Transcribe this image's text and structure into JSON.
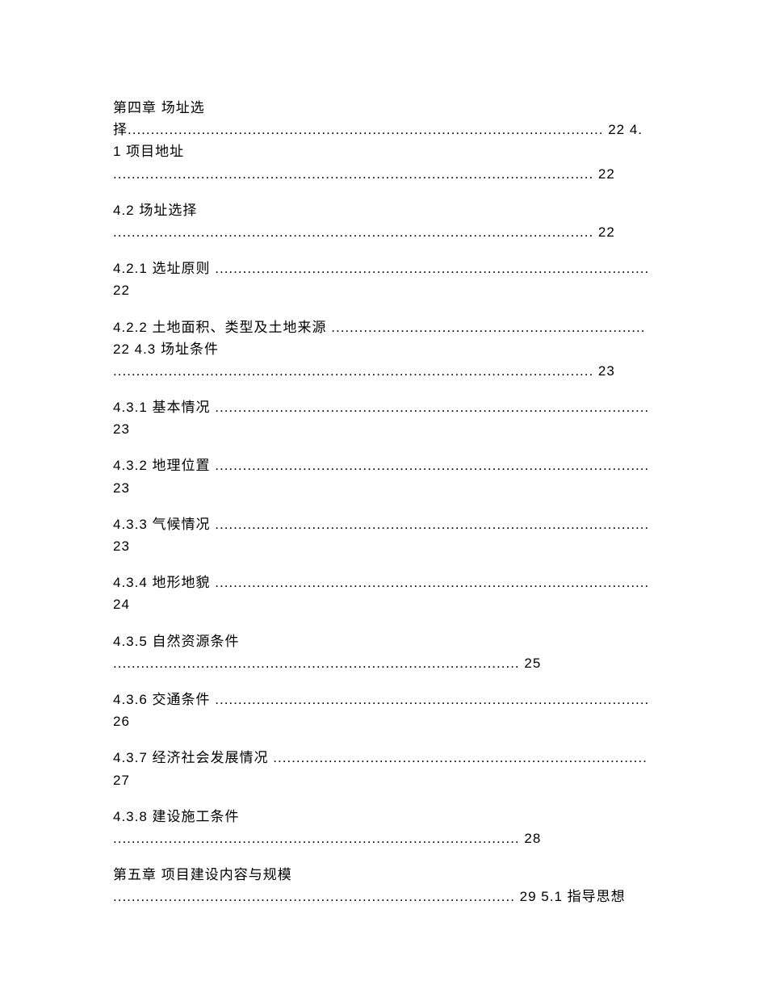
{
  "toc": {
    "font_size": 17,
    "text_color": "#000000",
    "background_color": "#ffffff",
    "entries": [
      {
        "text": "第四章 场址选择....................................................................................................... 22 4.1 项目地址 ........................................................................................................ 22"
      },
      {
        "text": "4.2 场址选择 ........................................................................................................ 22"
      },
      {
        "text": "4.2.1 选址原则 .............................................................................................. 22"
      },
      {
        "text": "4.2.2 土地面积、类型及土地来源 .................................................................... 22 4.3 场址条件 ........................................................................................................ 23"
      },
      {
        "text": "4.3.1 基本情况 .............................................................................................. 23"
      },
      {
        "text": "4.3.2 地理位置 .............................................................................................. 23"
      },
      {
        "text": "4.3.3 气候情况 .............................................................................................. 23"
      },
      {
        "text": "4.3.4 地形地貌 .............................................................................................. 24"
      },
      {
        "text": "4.3.5 自然资源条件 ........................................................................................ 25"
      },
      {
        "text": "4.3.6 交通条件 .............................................................................................. 26"
      },
      {
        "text": "4.3.7 经济社会发展情况 ................................................................................. 27"
      },
      {
        "text": "4.3.8 建设施工条件 ........................................................................................ 28"
      },
      {
        "text": "第五章 项目建设内容与规模 ....................................................................................... 29 5.1 指导思想"
      }
    ]
  }
}
